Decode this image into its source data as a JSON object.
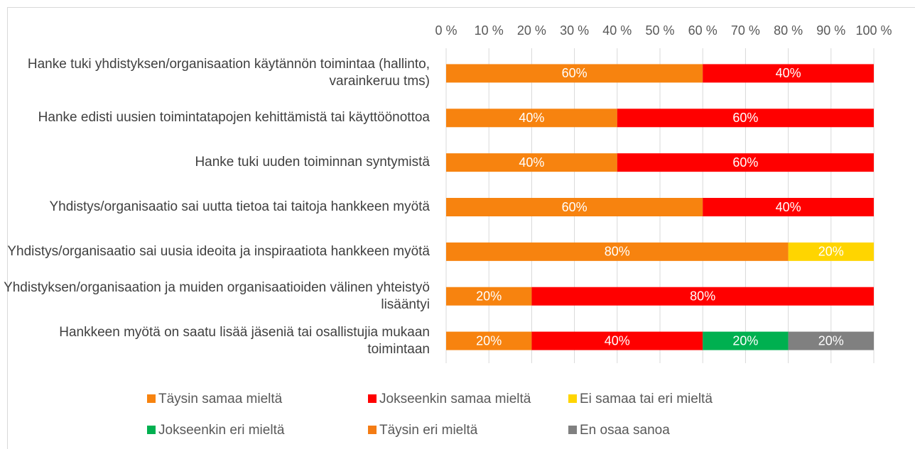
{
  "chart_data": {
    "type": "stacked_barh",
    "categories": [
      "Hanke tuki yhdistyksen/organisaation käytännön toimintaa (hallinto, varainkeruu tms)",
      "Hanke edisti uusien toimintatapojen kehittämistä tai käyttöönottoa",
      "Hanke tuki uuden toiminnan syntymistä",
      "Yhdistys/organisaatio sai uutta tietoa tai taitoja hankkeen myötä",
      "Yhdistys/organisaatio sai uusia ideoita ja inspiraatiota hankkeen myötä",
      "Yhdistyksen/organisaation ja muiden organisaatioiden välinen yhteistyö lisääntyi",
      "Hankkeen myötä on saatu lisää jäseniä tai osallistujia mukaan toimintaan"
    ],
    "series": [
      {
        "name": "Täysin samaa mieltä",
        "color": "#f7830f",
        "values": [
          60,
          40,
          40,
          60,
          80,
          20,
          20
        ],
        "value_labels": [
          "60%",
          "40%",
          "40%",
          "60%",
          "80%",
          "20%",
          "20%"
        ]
      },
      {
        "name": "Jokseenkin samaa mieltä",
        "color": "#ff0000",
        "values": [
          40,
          60,
          60,
          40,
          0,
          80,
          40
        ],
        "value_labels": [
          "40%",
          "60%",
          "60%",
          "40%",
          null,
          "80%",
          "40%"
        ]
      },
      {
        "name": "Ei samaa tai eri mieltä",
        "color": "#ffd500",
        "values": [
          0,
          0,
          0,
          0,
          20,
          0,
          0
        ],
        "value_labels": [
          null,
          null,
          null,
          null,
          "20%",
          null,
          null
        ]
      },
      {
        "name": "Jokseenkin eri mieltä",
        "color": "#00b050",
        "values": [
          0,
          0,
          0,
          0,
          0,
          0,
          20
        ],
        "value_labels": [
          null,
          null,
          null,
          null,
          null,
          null,
          "20%"
        ]
      },
      {
        "name": "Täysin eri mieltä",
        "color": "#f47c14",
        "values": [
          0,
          0,
          0,
          0,
          0,
          0,
          0
        ],
        "value_labels": [
          null,
          null,
          null,
          null,
          null,
          null,
          null
        ]
      },
      {
        "name": "En osaa sanoa",
        "color": "#808080",
        "values": [
          0,
          0,
          0,
          0,
          0,
          0,
          20
        ],
        "value_labels": [
          null,
          null,
          null,
          null,
          null,
          null,
          "20%"
        ]
      }
    ],
    "xlim": [
      0,
      100
    ],
    "xticks": [
      {
        "value": 0,
        "label": "0 %"
      },
      {
        "value": 10,
        "label": "10 %"
      },
      {
        "value": 20,
        "label": "20 %"
      },
      {
        "value": 30,
        "label": "30 %"
      },
      {
        "value": 40,
        "label": "40 %"
      },
      {
        "value": 50,
        "label": "50 %"
      },
      {
        "value": 60,
        "label": "60 %"
      },
      {
        "value": 70,
        "label": "70 %"
      },
      {
        "value": 80,
        "label": "80 %"
      },
      {
        "value": 90,
        "label": "90 %"
      },
      {
        "value": 100,
        "label": "100 %"
      }
    ],
    "grid": true,
    "legend": "bottom"
  }
}
